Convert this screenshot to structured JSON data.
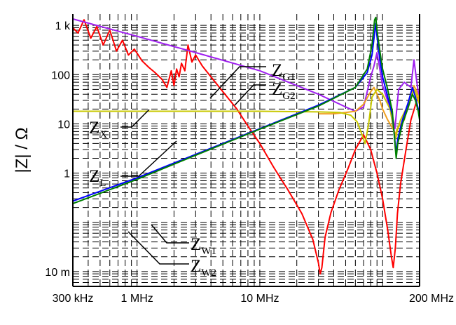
{
  "chart_data": {
    "type": "line",
    "title": "",
    "xlabel": "",
    "ylabel": "|Z| / Ω",
    "x_scale": "log",
    "y_scale": "log",
    "x_unit": "Hz",
    "y_unit": "Ω",
    "xlim": [
      300000,
      200000000
    ],
    "ylim": [
      0.005,
      1700
    ],
    "grid": true,
    "x_ticks": [
      {
        "value": 300000,
        "label": "300 kHz"
      },
      {
        "value": 1000000,
        "label": "1 MHz"
      },
      {
        "value": 10000000,
        "label": "10 MHz"
      },
      {
        "value": 200000000,
        "label": "200 MHz"
      }
    ],
    "y_ticks": [
      {
        "value": 0.01,
        "label": "10 m"
      },
      {
        "value": 0.1,
        "label": ""
      },
      {
        "value": 1,
        "label": "1"
      },
      {
        "value": 10,
        "label": "10"
      },
      {
        "value": 100,
        "label": "100"
      },
      {
        "value": 1000,
        "label": "1 k"
      }
    ],
    "series": [
      {
        "name": "ZX",
        "color": "#ff0000",
        "x": [
          300000,
          330000,
          370000,
          420000,
          470000,
          530000,
          600000,
          680000,
          760000,
          850000,
          950000,
          1100000,
          1250000,
          1400000,
          1600000,
          1750000,
          1900000,
          2000000,
          2100000,
          2200000,
          2300000,
          2450000,
          2600000,
          2800000,
          3000000,
          3400000,
          4000000,
          5000000,
          6500000,
          8000000,
          10000000,
          13000000,
          17000000,
          22000000,
          27000000,
          30000000,
          31000000,
          32000000,
          34000000,
          38000000,
          44000000,
          52000000,
          60000000,
          70000000,
          80000000,
          90000000,
          100000000,
          110000000,
          118000000,
          122000000,
          127000000,
          132000000,
          140000000,
          155000000,
          170000000,
          190000000,
          200000000
        ],
        "y": [
          900,
          700,
          1300,
          550,
          950,
          400,
          800,
          300,
          500,
          250,
          330,
          190,
          140,
          110,
          80,
          55,
          120,
          60,
          130,
          90,
          170,
          120,
          400,
          180,
          250,
          150,
          90,
          45,
          20,
          9,
          4,
          1.3,
          0.45,
          0.15,
          0.045,
          0.015,
          0.009,
          0.012,
          0.05,
          0.16,
          0.45,
          1.2,
          3,
          6,
          3,
          1,
          0.3,
          0.07,
          0.02,
          0.012,
          0.03,
          0.15,
          0.6,
          3,
          12,
          30,
          40
        ]
      },
      {
        "name": "ZG1",
        "color": "#a020f0",
        "x": [
          300000,
          1000000,
          3000000,
          10000000,
          30000000,
          50000000,
          60000000,
          70000000,
          80000000,
          85000000,
          90000000,
          100000000,
          120000000,
          126000000,
          129000000,
          135000000,
          150000000,
          170000000,
          180000000,
          190000000,
          200000000
        ],
        "y": [
          1350,
          600,
          280,
          120,
          40,
          22,
          18,
          22,
          90,
          150,
          280,
          60,
          15,
          8,
          15,
          50,
          70,
          55,
          200,
          70,
          30
        ]
      },
      {
        "name": "ZG2",
        "color": "#f0a020",
        "x": [
          30000000,
          40000000,
          50000000,
          60000000,
          70000000,
          80000000,
          85000000,
          90000000,
          95000000,
          100000000,
          110000000,
          125000000,
          128000000,
          131000000,
          150000000,
          165000000,
          175000000,
          180000000,
          190000000,
          200000000
        ],
        "y": [
          16,
          16,
          17,
          18,
          25,
          45,
          55,
          40,
          30,
          20,
          12,
          7,
          6,
          8,
          12,
          30,
          45,
          60,
          45,
          30
        ]
      },
      {
        "name": "ZL",
        "color": "#c8c800",
        "x": [
          300000,
          1000000,
          3000000,
          10000000,
          30000000,
          45000000,
          55000000,
          62000000,
          68000000,
          72000000,
          77000000,
          82000000,
          90000000,
          100000000,
          115000000,
          125000000,
          128000000,
          131000000,
          140000000,
          155000000,
          170000000,
          180000000,
          185000000,
          190000000,
          200000000
        ],
        "y": [
          18,
          18,
          18,
          18,
          17.5,
          17,
          15,
          11,
          6,
          4,
          10,
          35,
          50,
          40,
          20,
          6,
          5,
          7,
          12,
          20,
          35,
          50,
          45,
          35,
          25
        ]
      },
      {
        "name": "ZW1",
        "color": "#0000ff",
        "x": [
          300000,
          1000000,
          3000000,
          10000000,
          30000000,
          60000000,
          75000000,
          82000000,
          86000000,
          88000000,
          90000000,
          95000000,
          100000000,
          110000000,
          120000000,
          126000000,
          129000000,
          133000000,
          145000000,
          160000000,
          175000000,
          185000000,
          195000000,
          200000000
        ],
        "y": [
          0.27,
          0.8,
          2.4,
          8,
          24,
          55,
          110,
          250,
          700,
          1100,
          600,
          200,
          90,
          35,
          15,
          4.5,
          2.5,
          5,
          12,
          25,
          55,
          35,
          20,
          15
        ]
      },
      {
        "name": "ZW2",
        "color": "#008000",
        "x": [
          300000,
          1000000,
          3000000,
          10000000,
          30000000,
          60000000,
          75000000,
          82000000,
          86000000,
          88000000,
          90000000,
          95000000,
          100000000,
          110000000,
          120000000,
          126000000,
          129000000,
          133000000,
          145000000,
          160000000,
          175000000,
          185000000,
          195000000,
          200000000
        ],
        "y": [
          0.24,
          0.75,
          2.3,
          7.8,
          23,
          55,
          130,
          400,
          1300,
          1450,
          800,
          300,
          130,
          50,
          18,
          4,
          2,
          4,
          10,
          20,
          40,
          30,
          18,
          12
        ]
      }
    ],
    "annotations": [
      {
        "main": "Z",
        "sub": "G1",
        "series": "ZG1"
      },
      {
        "main": "Z",
        "sub": "G2",
        "series": "ZG2"
      },
      {
        "main": "Z",
        "sub": "X",
        "series": "ZX"
      },
      {
        "main": "Z",
        "sub": "L",
        "series": "ZL"
      },
      {
        "main": "Z",
        "sub": "W1",
        "series": "ZW1"
      },
      {
        "main": "Z",
        "sub": "W2",
        "series": "ZW2"
      }
    ]
  }
}
